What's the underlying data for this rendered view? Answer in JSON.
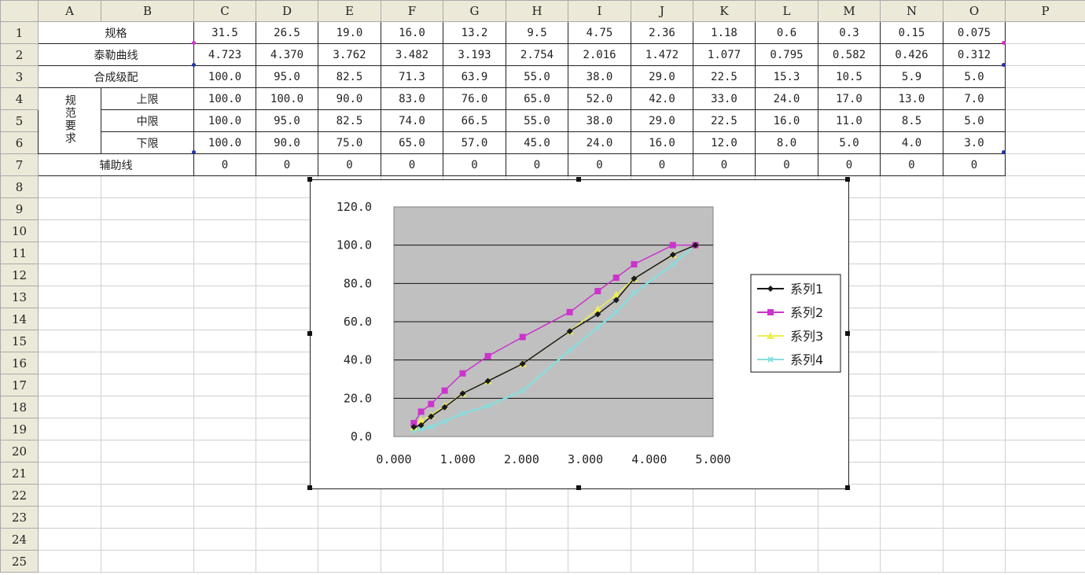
{
  "columns": [
    "",
    "A",
    "B",
    "C",
    "D",
    "E",
    "F",
    "G",
    "H",
    "I",
    "J",
    "K",
    "L",
    "M",
    "N",
    "O",
    "P"
  ],
  "rows": [
    "1",
    "2",
    "3",
    "4",
    "5",
    "6",
    "7",
    "8",
    "9",
    "10",
    "11",
    "12",
    "13",
    "14",
    "15",
    "16",
    "17",
    "18",
    "19",
    "20",
    "21",
    "22",
    "23",
    "24",
    "25"
  ],
  "table": {
    "row1_label": "规格",
    "row2_label": "泰勒曲线",
    "row3_label": "合成级配",
    "spec_label": "规范要求",
    "upper_label": "上限",
    "middle_label": "中限",
    "lower_label": "下限",
    "row7_label": "辅助线",
    "sizes": [
      "31.5",
      "26.5",
      "19.0",
      "16.0",
      "13.2",
      "9.5",
      "4.75",
      "2.36",
      "1.18",
      "0.6",
      "0.3",
      "0.15",
      "0.075"
    ],
    "taylor": [
      "4.723",
      "4.370",
      "3.762",
      "3.482",
      "3.193",
      "2.754",
      "2.016",
      "1.472",
      "1.077",
      "0.795",
      "0.582",
      "0.426",
      "0.312"
    ],
    "composite": [
      "100.0",
      "95.0",
      "82.5",
      "71.3",
      "63.9",
      "55.0",
      "38.0",
      "29.0",
      "22.5",
      "15.3",
      "10.5",
      "5.9",
      "5.0"
    ],
    "upper": [
      "100.0",
      "100.0",
      "90.0",
      "83.0",
      "76.0",
      "65.0",
      "52.0",
      "42.0",
      "33.0",
      "24.0",
      "17.0",
      "13.0",
      "7.0"
    ],
    "middle": [
      "100.0",
      "95.0",
      "82.5",
      "74.0",
      "66.5",
      "55.0",
      "38.0",
      "29.0",
      "22.5",
      "16.0",
      "11.0",
      "8.5",
      "5.0"
    ],
    "lower": [
      "100.0",
      "90.0",
      "75.0",
      "65.0",
      "57.0",
      "45.0",
      "24.0",
      "16.0",
      "12.0",
      "8.0",
      "5.0",
      "4.0",
      "3.0"
    ],
    "aux": [
      "0",
      "0",
      "0",
      "0",
      "0",
      "0",
      "0",
      "0",
      "0",
      "0",
      "0",
      "0",
      "0"
    ]
  },
  "colors": {
    "plot_bg": "#c0c0c0",
    "s1": "#1a1a1a",
    "s2": "#cc33cc",
    "s3": "#eeee55",
    "s4": "#88dddd"
  },
  "chart_data": {
    "type": "scatter",
    "xlim": [
      0,
      5
    ],
    "ylim": [
      0,
      120
    ],
    "xticks": [
      "0.000",
      "1.000",
      "2.000",
      "3.000",
      "4.000",
      "5.000"
    ],
    "yticks": [
      "0.0",
      "20.0",
      "40.0",
      "60.0",
      "80.0",
      "100.0",
      "120.0"
    ],
    "grid": "horizontal",
    "legend": "right",
    "x": [
      4.723,
      4.37,
      3.762,
      3.482,
      3.193,
      2.754,
      2.016,
      1.472,
      1.077,
      0.795,
      0.582,
      0.426,
      0.312
    ],
    "series": [
      {
        "name": "系列1",
        "values": [
          100.0,
          95.0,
          82.5,
          71.3,
          63.9,
          55.0,
          38.0,
          29.0,
          22.5,
          15.3,
          10.5,
          5.9,
          5.0
        ]
      },
      {
        "name": "系列2",
        "values": [
          100.0,
          100.0,
          90.0,
          83.0,
          76.0,
          65.0,
          52.0,
          42.0,
          33.0,
          24.0,
          17.0,
          13.0,
          7.0
        ]
      },
      {
        "name": "系列3",
        "values": [
          100.0,
          95.0,
          82.5,
          74.0,
          66.5,
          55.0,
          38.0,
          29.0,
          22.5,
          16.0,
          11.0,
          8.5,
          5.0
        ]
      },
      {
        "name": "系列4",
        "values": [
          100.0,
          90.0,
          75.0,
          65.0,
          57.0,
          45.0,
          24.0,
          16.0,
          12.0,
          8.0,
          5.0,
          4.0,
          3.0
        ]
      }
    ]
  }
}
